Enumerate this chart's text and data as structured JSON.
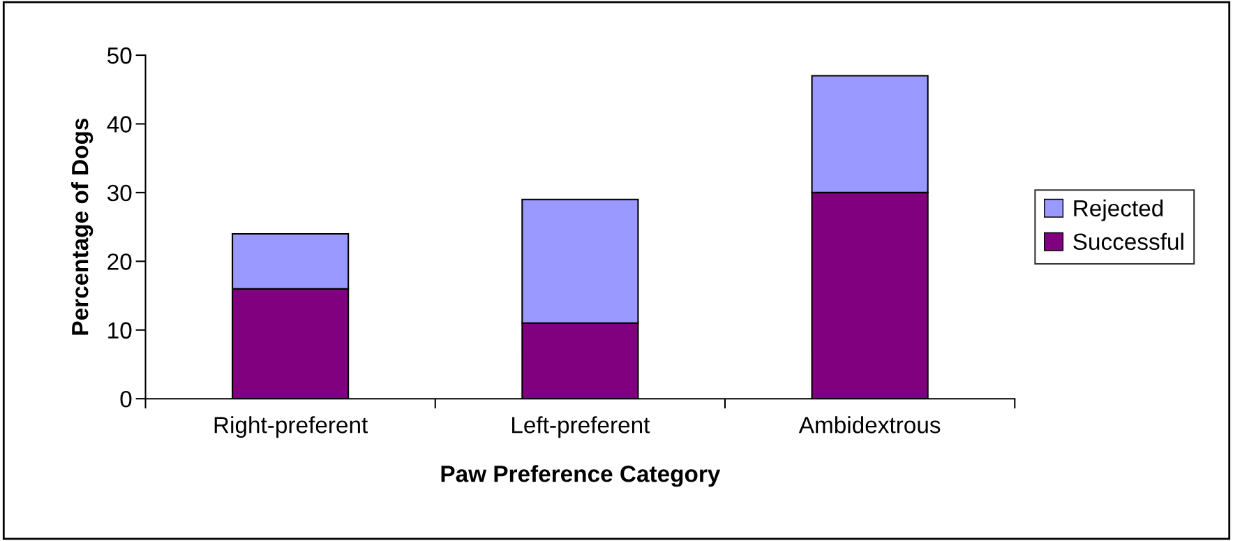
{
  "chart_data": {
    "type": "bar",
    "stacked": true,
    "xlabel": "Paw Preference Category",
    "ylabel": "Percentage of Dogs",
    "categories": [
      "Right-preferent",
      "Left-preferent",
      "Ambidextrous"
    ],
    "series": [
      {
        "name": "Successful",
        "color": "#800080",
        "values": [
          16,
          11,
          30
        ]
      },
      {
        "name": "Rejected",
        "color": "#9999ff",
        "values": [
          8,
          18,
          17
        ]
      }
    ],
    "ylim": [
      0,
      50
    ],
    "yticks": [
      0,
      10,
      20,
      30,
      40,
      50
    ],
    "grid": false,
    "legend": "right"
  }
}
